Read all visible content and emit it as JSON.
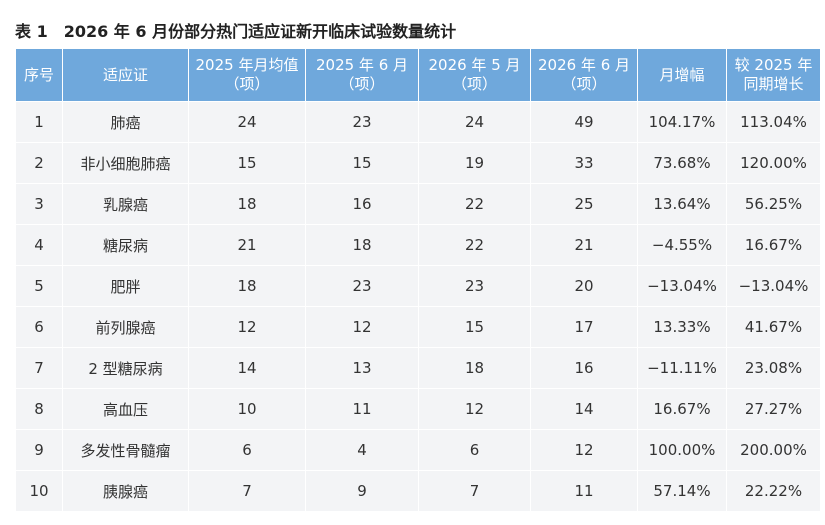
{
  "title": "表 1　2026 年 6 月份部分热门适应证新开临床试验数量统计",
  "table": {
    "header": [
      [
        "序号"
      ],
      [
        "适应证"
      ],
      [
        "2025 年月均值",
        "（项）"
      ],
      [
        "2025 年 6 月",
        "（项）"
      ],
      [
        "2026 年 5 月",
        "（项）"
      ],
      [
        "2026 年 6 月",
        "（项）"
      ],
      [
        "月增幅"
      ],
      [
        "较 2025 年",
        "同期增长"
      ]
    ],
    "rows": [
      [
        1,
        "肺癌",
        24,
        23,
        24,
        49,
        "104.17%",
        "113.04%"
      ],
      [
        2,
        "非小细胞肺癌",
        15,
        15,
        19,
        33,
        "73.68%",
        "120.00%"
      ],
      [
        3,
        "乳腺癌",
        18,
        16,
        22,
        25,
        "13.64%",
        "56.25%"
      ],
      [
        4,
        "糖尿病",
        21,
        18,
        22,
        21,
        "−4.55%",
        "16.67%"
      ],
      [
        5,
        "肥胖",
        18,
        23,
        23,
        20,
        "−13.04%",
        "−13.04%"
      ],
      [
        6,
        "前列腺癌",
        12,
        12,
        15,
        17,
        "13.33%",
        "41.67%"
      ],
      [
        7,
        "2 型糖尿病",
        14,
        13,
        18,
        16,
        "−11.11%",
        "23.08%"
      ],
      [
        8,
        "高血压",
        10,
        11,
        12,
        14,
        "16.67%",
        "27.27%"
      ],
      [
        9,
        "多发性骨髓瘤",
        6,
        4,
        6,
        12,
        "100.00%",
        "200.00%"
      ],
      [
        10,
        "胰腺癌",
        7,
        9,
        7,
        11,
        "57.14%",
        "22.22%"
      ]
    ]
  }
}
